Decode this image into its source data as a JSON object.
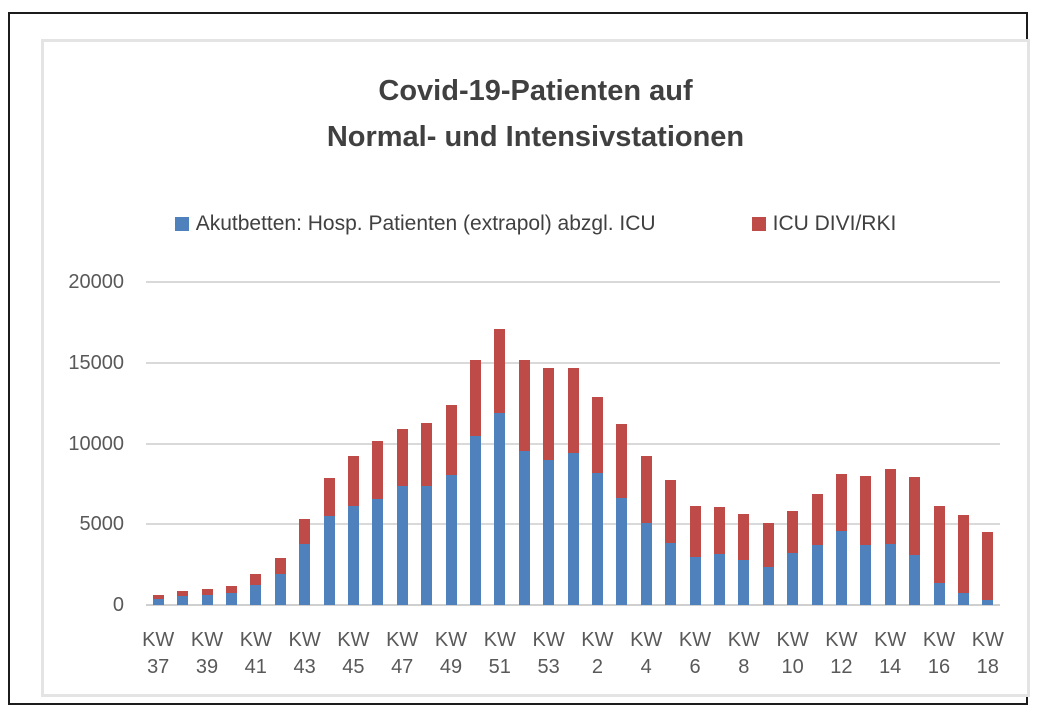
{
  "chart_data": {
    "type": "bar",
    "stacked": true,
    "title": "Covid-19-Patienten auf Normal- und Intensivstationen",
    "title_lines": [
      "Covid-19-Patienten auf",
      "Normal- und Intensivstationen"
    ],
    "x_tick_prefix": "KW",
    "x_tick_every": 2,
    "categories": [
      "37",
      "38",
      "39",
      "40",
      "41",
      "42",
      "43",
      "44",
      "45",
      "46",
      "47",
      "48",
      "49",
      "50",
      "51",
      "52",
      "53",
      "1",
      "2",
      "3",
      "4",
      "5",
      "6",
      "7",
      "8",
      "9",
      "10",
      "11",
      "12",
      "13",
      "14",
      "15",
      "16",
      "17",
      "18"
    ],
    "series": [
      {
        "name": "Akutbetten: Hosp. Patienten (extrapol) abzgl. ICU",
        "color": "#4F81BD",
        "values": [
          380,
          550,
          620,
          750,
          1250,
          1950,
          3800,
          5500,
          6150,
          6550,
          7350,
          7400,
          8050,
          10450,
          11900,
          9550,
          9000,
          9400,
          8150,
          6650,
          5050,
          3850,
          2950,
          3150,
          2800,
          2350,
          3200,
          3700,
          4600,
          3700,
          3750,
          3100,
          1350,
          750,
          300
        ]
      },
      {
        "name": "ICU DIVI/RKI",
        "color": "#BE4B48",
        "values": [
          240,
          300,
          370,
          430,
          650,
          950,
          1500,
          2350,
          3100,
          3600,
          3550,
          3900,
          4350,
          4700,
          5200,
          5600,
          5650,
          5300,
          4750,
          4550,
          4200,
          3900,
          3200,
          2950,
          2850,
          2750,
          2600,
          3150,
          3500,
          4300,
          4700,
          4850,
          4800,
          4800,
          4250
        ]
      }
    ],
    "ylim": [
      0,
      20000
    ],
    "yticks": [
      0,
      5000,
      10000,
      15000,
      20000
    ],
    "grid": true,
    "legend_position": "top",
    "grid_color": "#d9d9d9",
    "text_color": "#595959",
    "title_color": "#404040"
  }
}
